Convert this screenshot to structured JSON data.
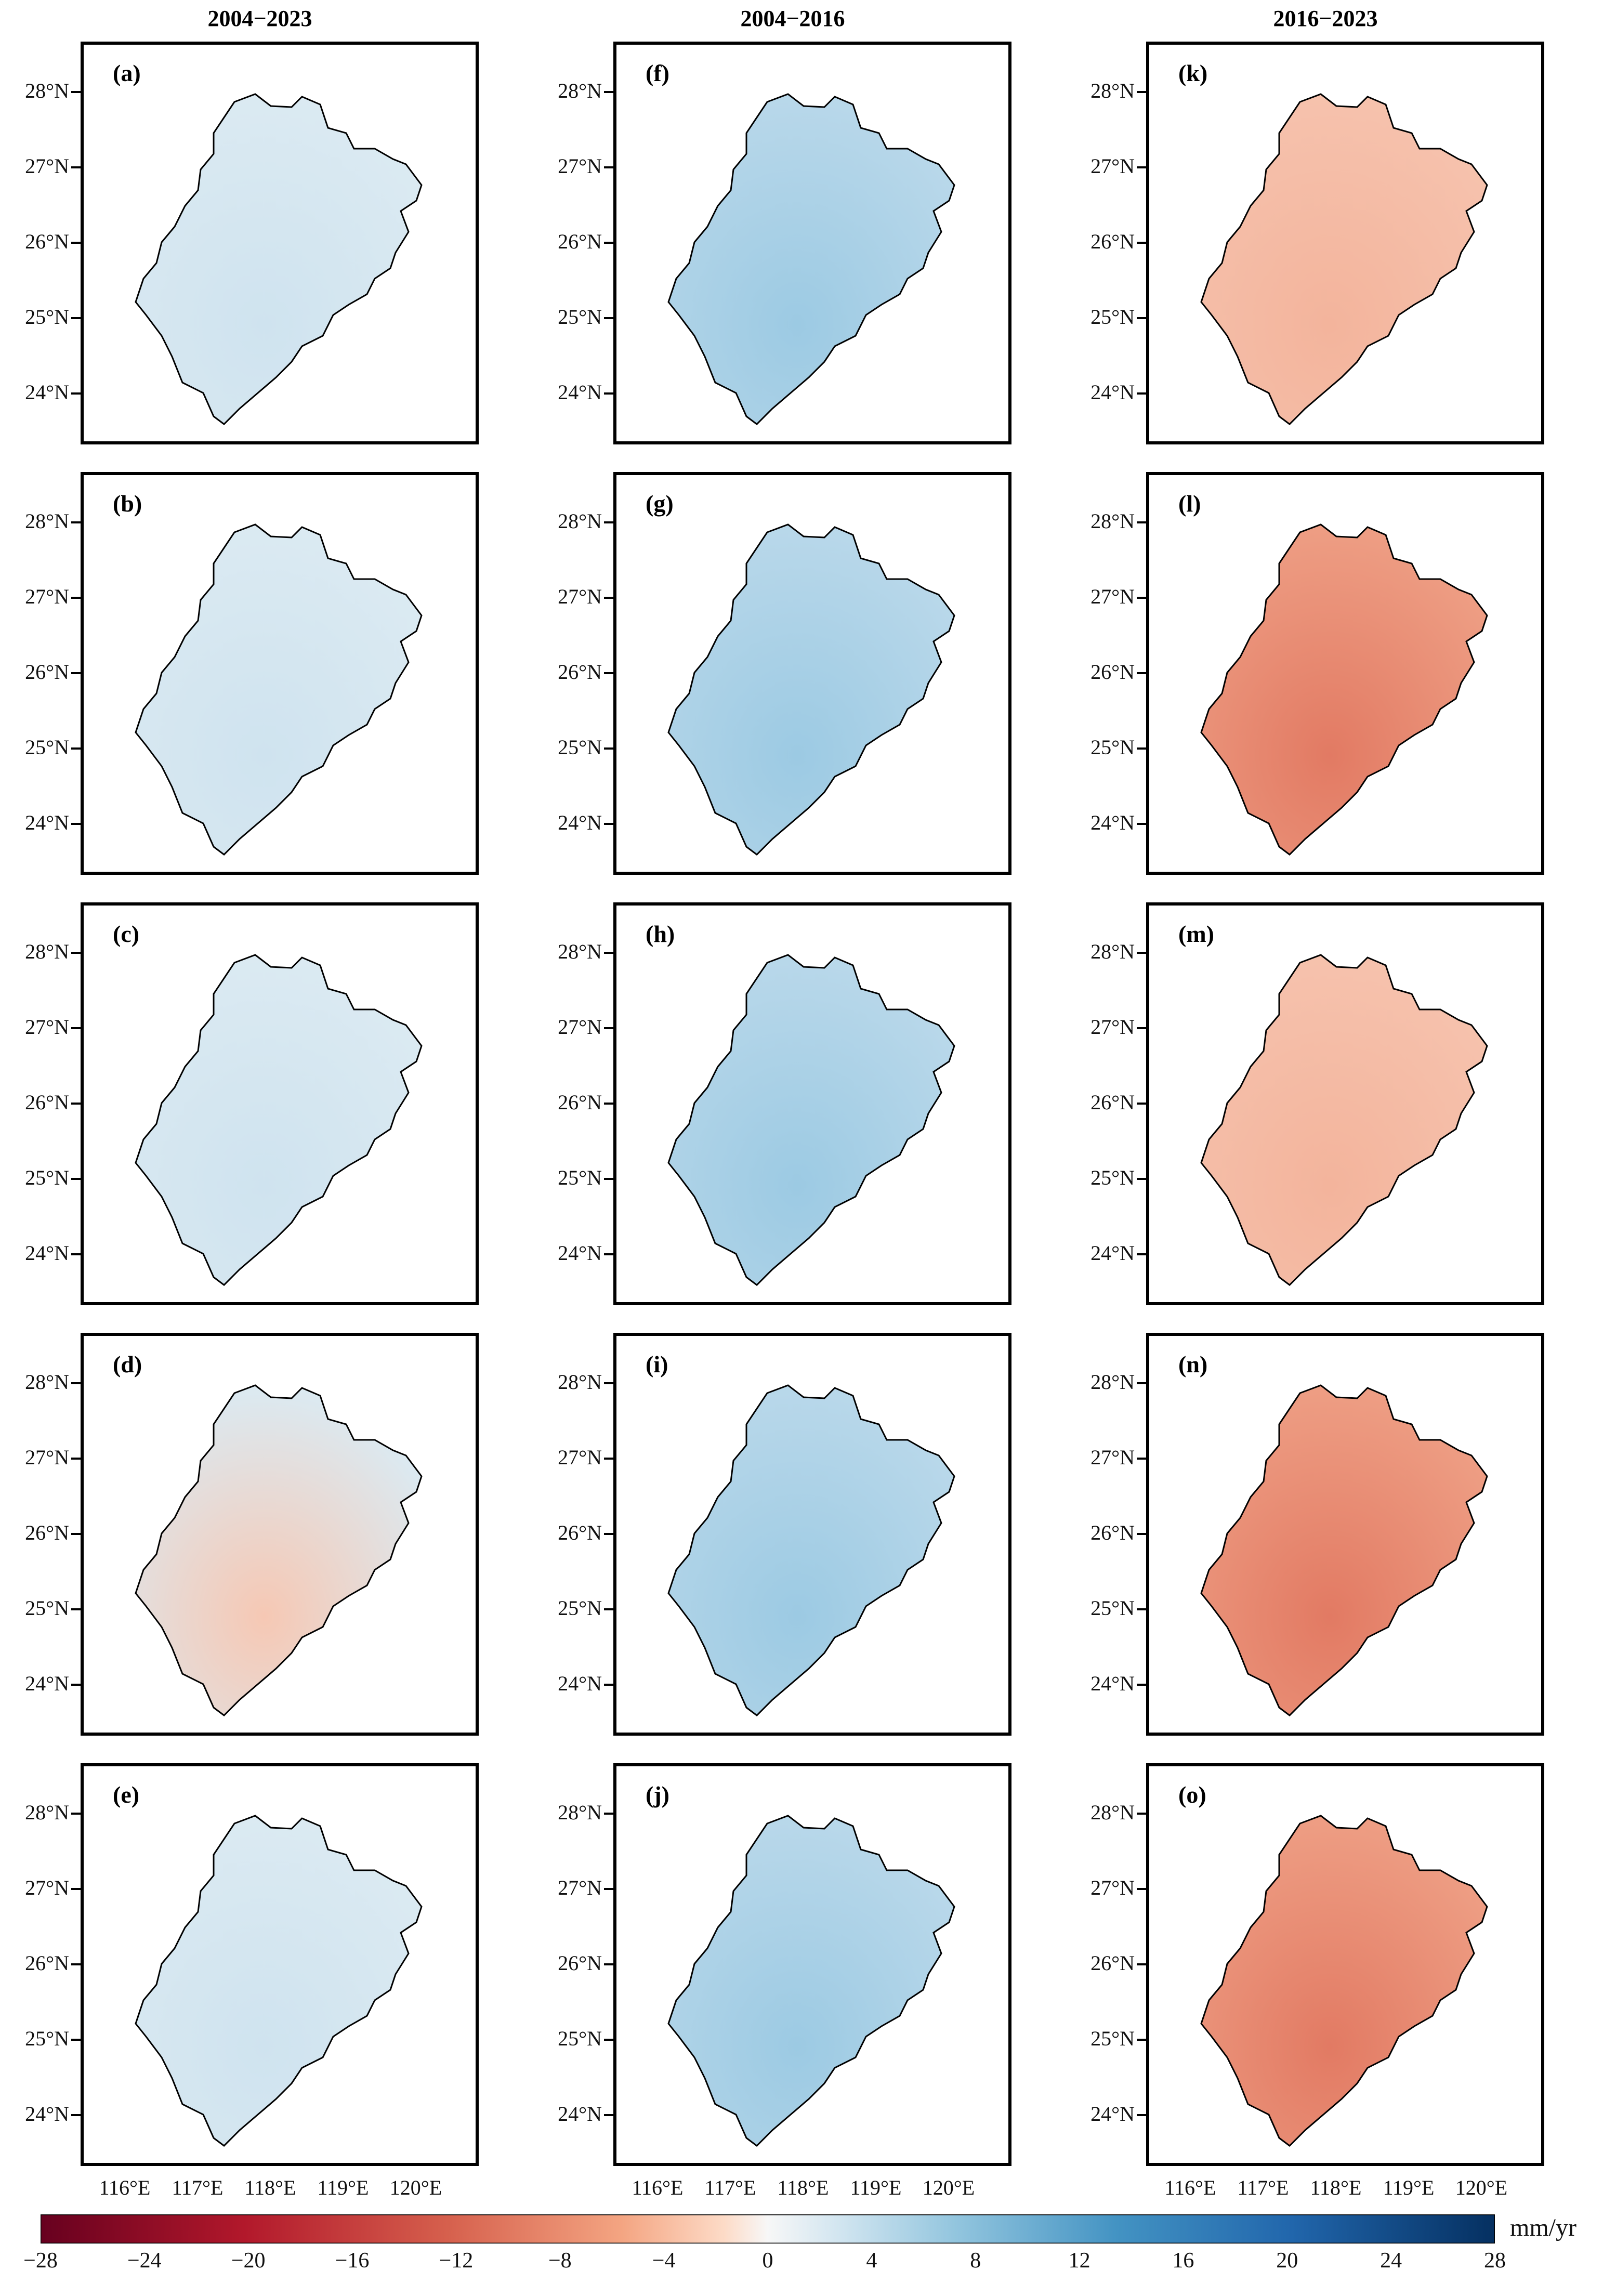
{
  "columns": [
    {
      "title": "2004−2023"
    },
    {
      "title": "2004−2016"
    },
    {
      "title": "2016−2023"
    }
  ],
  "panels": [
    [
      {
        "label": "(a)",
        "tone": "lightblue"
      },
      {
        "label": "(b)",
        "tone": "lightblue"
      },
      {
        "label": "(c)",
        "tone": "lightblue"
      },
      {
        "label": "(d)",
        "tone": "mixed"
      },
      {
        "label": "(e)",
        "tone": "lightblue"
      }
    ],
    [
      {
        "label": "(f)",
        "tone": "blue"
      },
      {
        "label": "(g)",
        "tone": "blue"
      },
      {
        "label": "(h)",
        "tone": "blue"
      },
      {
        "label": "(i)",
        "tone": "blue"
      },
      {
        "label": "(j)",
        "tone": "blue"
      }
    ],
    [
      {
        "label": "(k)",
        "tone": "lightred"
      },
      {
        "label": "(l)",
        "tone": "red"
      },
      {
        "label": "(m)",
        "tone": "lightred"
      },
      {
        "label": "(n)",
        "tone": "red"
      },
      {
        "label": "(o)",
        "tone": "red"
      }
    ]
  ],
  "y_ticks": [
    "28°N",
    "27°N",
    "26°N",
    "25°N",
    "24°N"
  ],
  "x_ticks": [
    "116°E",
    "117°E",
    "118°E",
    "119°E",
    "120°E"
  ],
  "colorbar": {
    "ticks": [
      "−28",
      "−24",
      "−20",
      "−16",
      "−12",
      "−8",
      "−4",
      "0",
      "4",
      "8",
      "12",
      "16",
      "20",
      "24",
      "28"
    ],
    "unit": "mm/yr",
    "colors": [
      "#67001f",
      "#b2182b",
      "#d6604d",
      "#f4a582",
      "#fddbc7",
      "#f7f7f7",
      "#d1e5f0",
      "#92c5de",
      "#4393c3",
      "#2166ac",
      "#053061"
    ]
  }
}
